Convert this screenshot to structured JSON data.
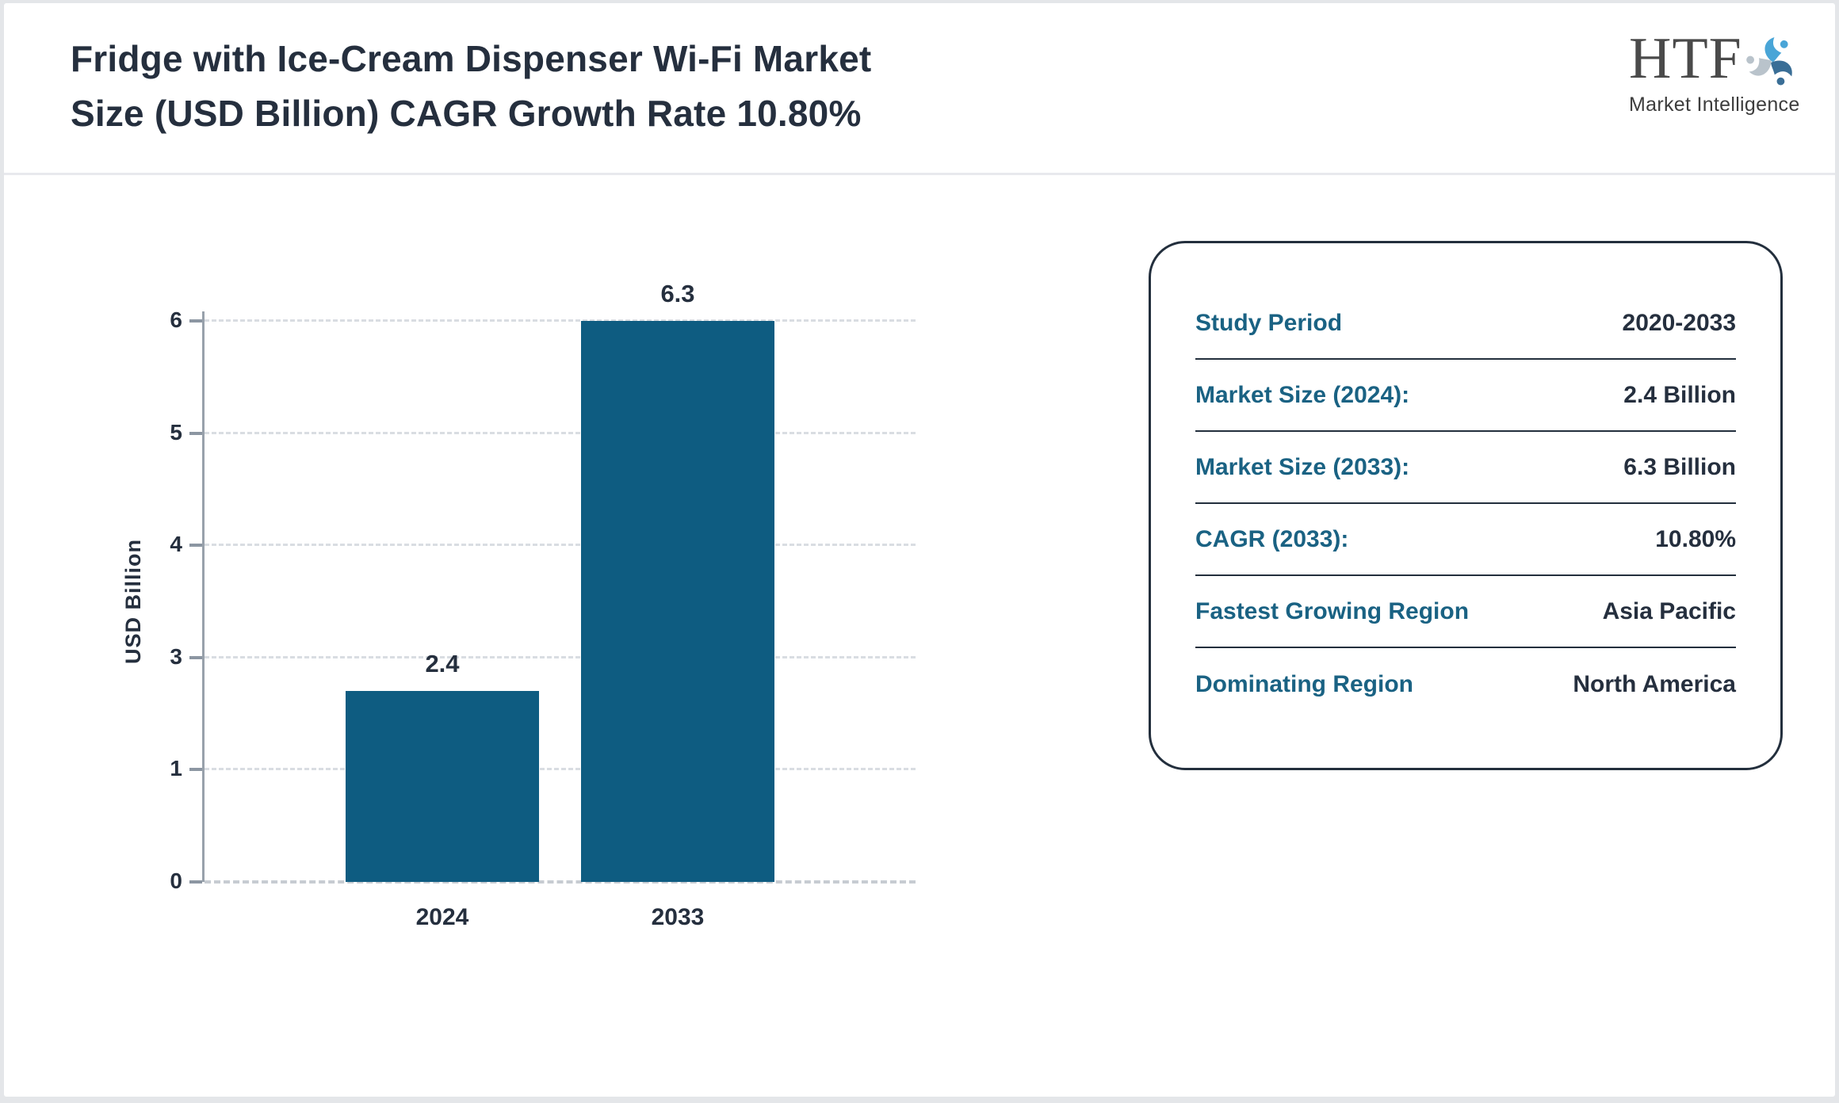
{
  "header": {
    "title": "Fridge with Ice-Cream Dispenser Wi-Fi Market\nSize (USD Billion) CAGR Growth Rate 10.80%",
    "logo": {
      "text": "HTF",
      "subtext": "Market Intelligence"
    }
  },
  "chart_data": {
    "type": "bar",
    "categories": [
      "2024",
      "2033"
    ],
    "values": [
      2.4,
      6.3
    ],
    "bar_labels": [
      "2.4",
      "6.3"
    ],
    "title": "",
    "xlabel": "",
    "ylabel": "USD Billion",
    "ytick_labels": [
      0,
      1,
      3,
      4,
      5,
      6
    ],
    "ylim": [
      0,
      6
    ],
    "grid": "horizontal-dashed",
    "legend": "none",
    "bar_color": "#0e5c81"
  },
  "summary_panel": {
    "rows": [
      {
        "label": "Study Period",
        "value": "2020-2033"
      },
      {
        "label": "Market Size (2024):",
        "value": "2.4 Billion"
      },
      {
        "label": "Market Size (2033):",
        "value": "6.3 Billion"
      },
      {
        "label": "CAGR (2033):",
        "value": "10.80%"
      },
      {
        "label": "Fastest Growing Region",
        "value": "Asia Pacific"
      },
      {
        "label": "Dominating Region",
        "value": "North America"
      }
    ]
  },
  "colors": {
    "bar": "#0e5c81",
    "accent_teal": "#1a6283",
    "title_text": "#252f3e",
    "axis_gray": "#98a1ab",
    "gridline": "#d9dde2",
    "page_border": "#e4e6e9"
  }
}
